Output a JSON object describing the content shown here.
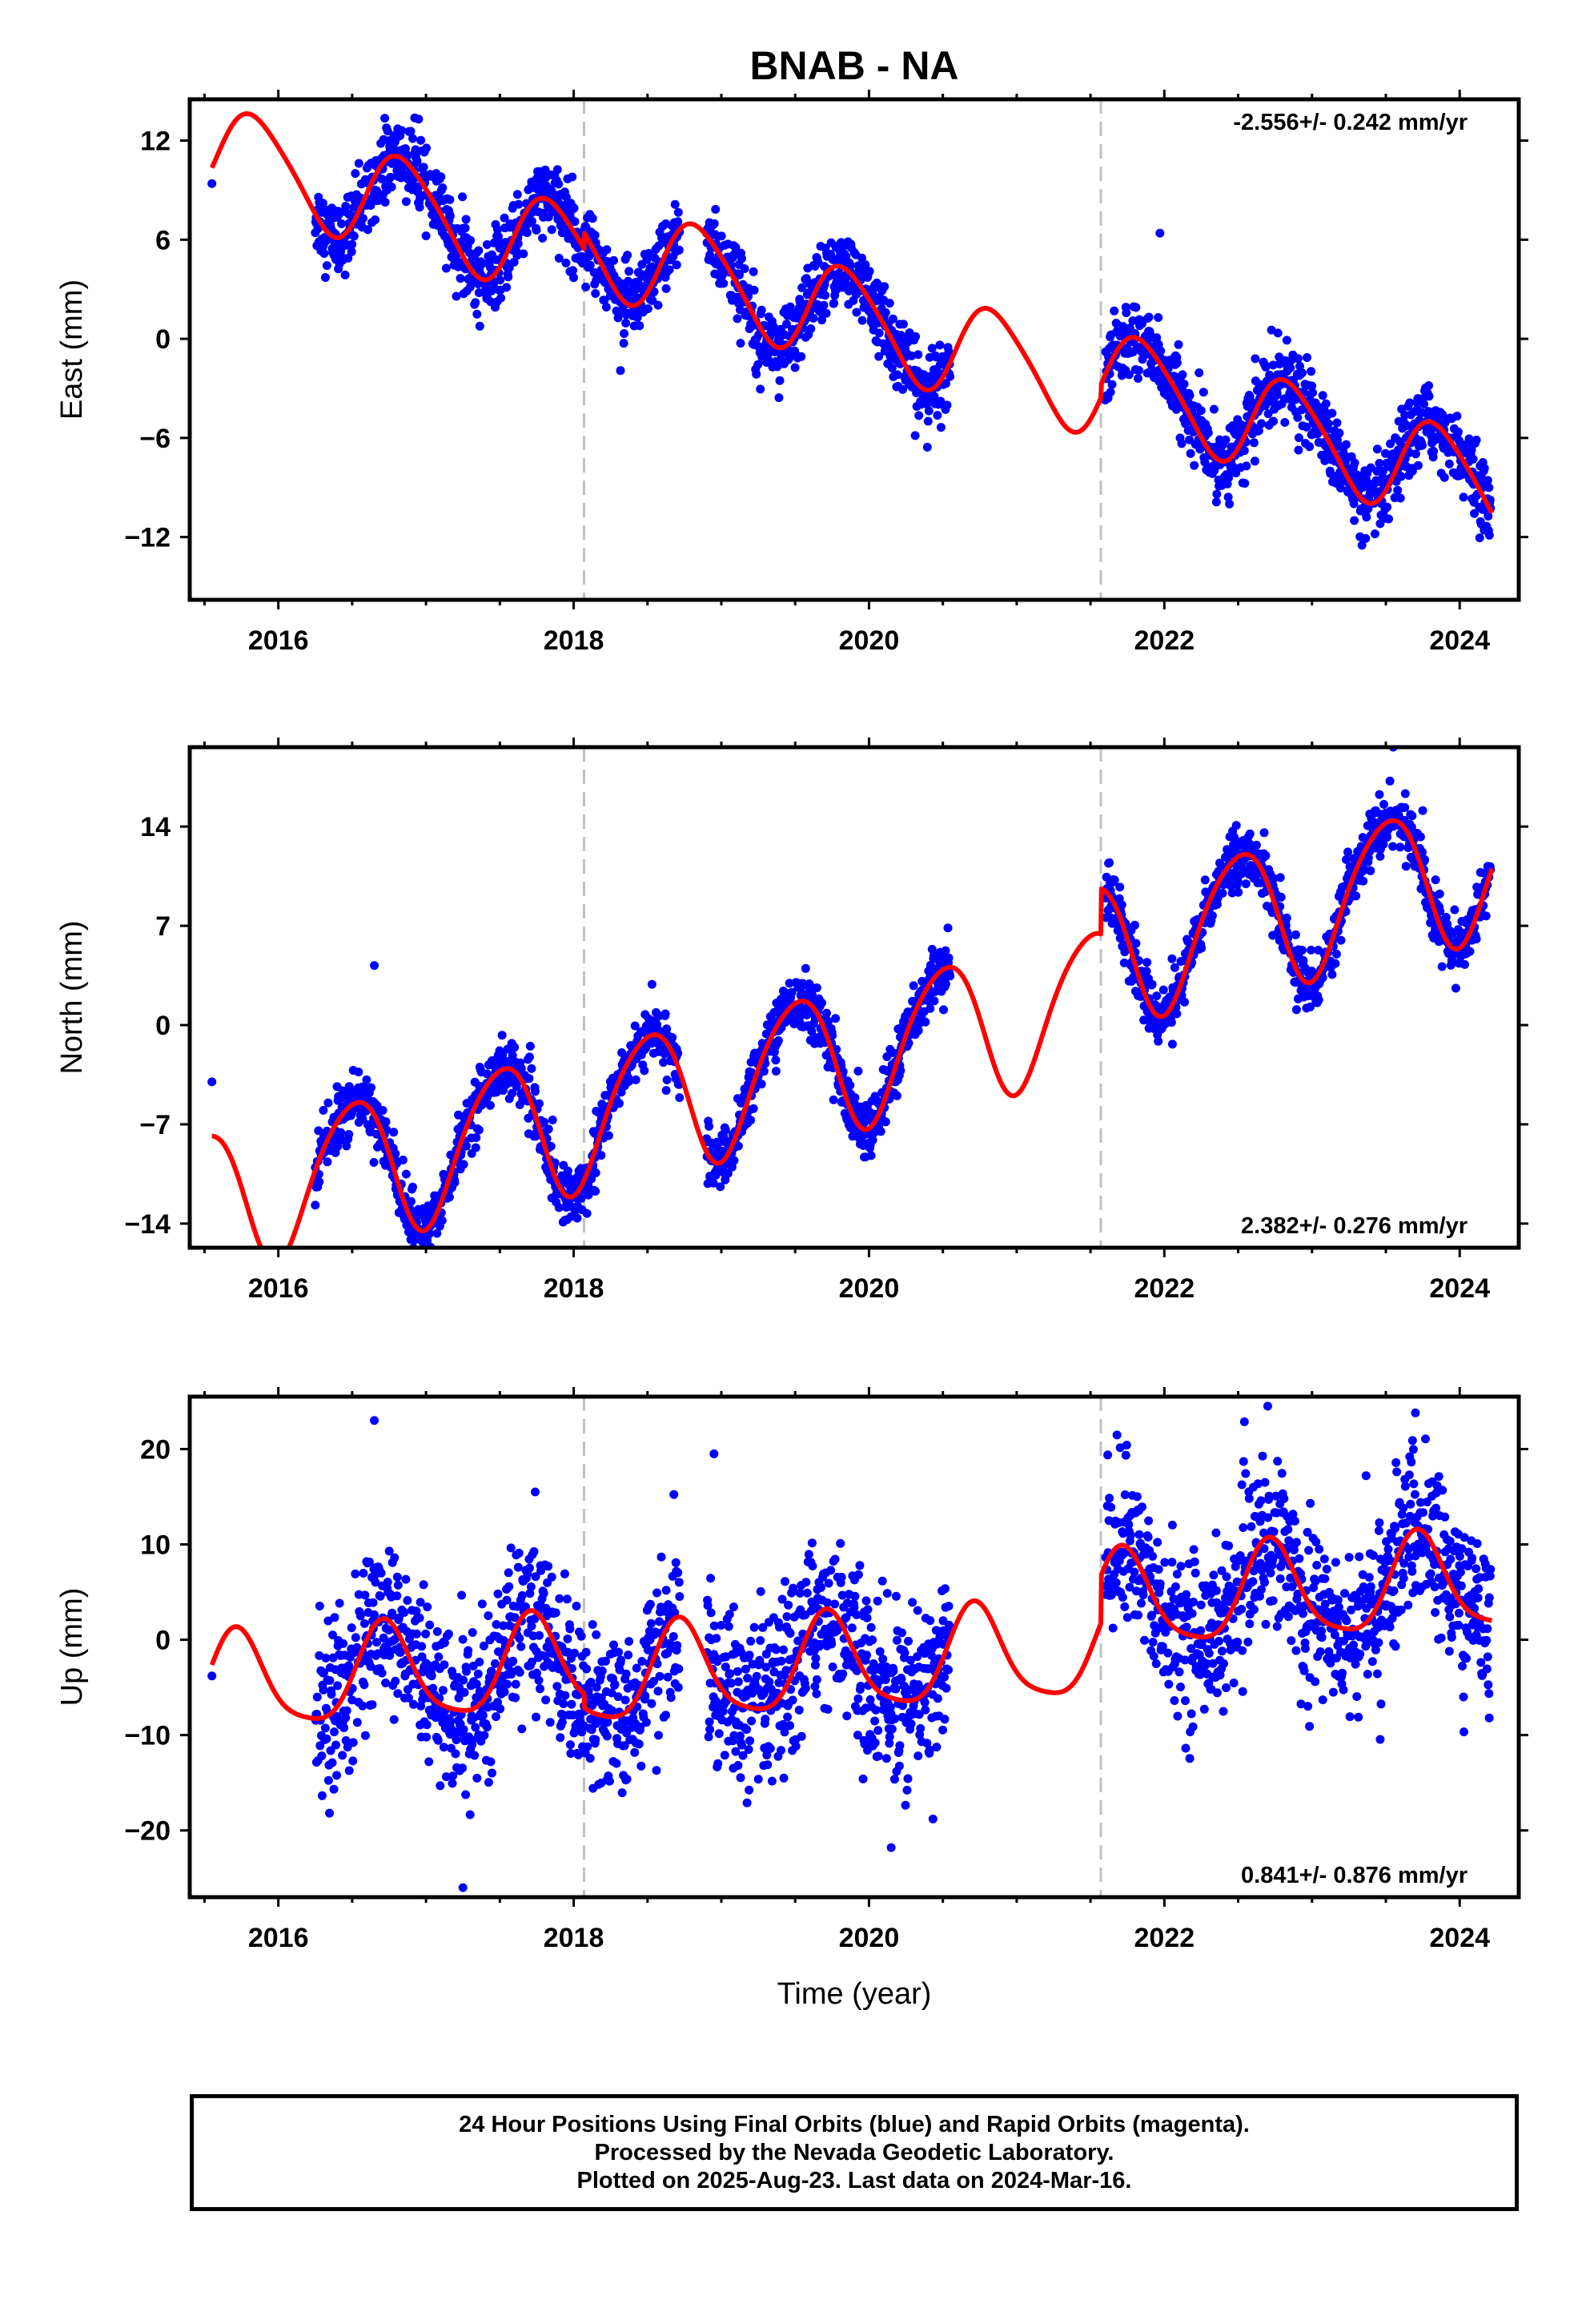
{
  "title": "BNAB - NA",
  "xlabel": "Time (year)",
  "footer": {
    "line1": "24 Hour Positions Using Final Orbits (blue) and Rapid Orbits (magenta).",
    "line2": "Processed by the Nevada Geodetic Laboratory.",
    "line3": "Plotted on 2025-Aug-23. Last data on 2024-Mar-16."
  },
  "colors": {
    "points": "#0000ff",
    "model": "#ff0000",
    "breaks": "#c0c0c0",
    "frame": "#000000"
  },
  "chart_data": [
    {
      "type": "scatter",
      "component": "East",
      "ylabel": "East (mm)",
      "rate_label": "-2.556+/- 0.242 mm/yr",
      "rate_label_position": "top-right",
      "xlim": [
        2015.4,
        2024.4
      ],
      "ylim": [
        -15.8,
        14.5
      ],
      "xticks": [
        2016,
        2018,
        2020,
        2022,
        2024
      ],
      "yticks": [
        12,
        6,
        0,
        -6,
        -12
      ],
      "ytick_labels": [
        "12",
        "6",
        "0",
        "−6",
        "−12"
      ],
      "equipment_breaks": [
        2018.07,
        2021.57
      ],
      "data_spans": [
        [
          2016.25,
          2018.72
        ],
        [
          2018.9,
          2020.55
        ],
        [
          2021.6,
          2024.21
        ]
      ],
      "outliers": [
        [
          2015.55,
          9.4
        ],
        [
          2016.95,
          13.3
        ],
        [
          2017.99,
          9.8
        ],
        [
          2021.97,
          6.4
        ]
      ],
      "model": {
        "rate_mm_per_yr": -2.556,
        "offset_at_2020": 0.0,
        "annual_amplitude_mm": 2.9,
        "annual_phase_peak_year_fraction": 0.85,
        "semiannual_amplitude_mm": 0.4,
        "steps_mm": [
          {
            "year": 2018.07,
            "value": 1.0
          },
          {
            "year": 2021.57,
            "value": 0.8
          }
        ]
      },
      "scatter_sigma_mm": 1.1
    },
    {
      "type": "scatter",
      "component": "North",
      "ylabel": "North (mm)",
      "rate_label": "2.382+/- 0.276 mm/yr",
      "rate_label_position": "bottom-right",
      "xlim": [
        2015.4,
        2024.4
      ],
      "ylim": [
        -15.7,
        19.6
      ],
      "xticks": [
        2016,
        2018,
        2020,
        2022,
        2024
      ],
      "yticks": [
        14,
        7,
        0,
        -7,
        -14
      ],
      "ytick_labels": [
        "14",
        "7",
        "0",
        "−7",
        "−14"
      ],
      "equipment_breaks": [
        2018.07,
        2021.57
      ],
      "data_spans": [
        [
          2016.25,
          2018.72
        ],
        [
          2018.9,
          2020.55
        ],
        [
          2021.6,
          2024.21
        ]
      ],
      "outliers": [
        [
          2015.55,
          -4.0
        ],
        [
          2016.65,
          4.2
        ],
        [
          2016.25,
          -12.7
        ],
        [
          2023.55,
          19.6
        ]
      ],
      "model": {
        "rate_mm_per_yr": 2.382,
        "offset_at_2020": -1.8,
        "annual_amplitude_mm": 5.0,
        "annual_phase_peak_year_fraction": 0.5,
        "semiannual_amplitude_mm": 0.6,
        "steps_mm": [
          {
            "year": 2018.07,
            "value": 0.0
          },
          {
            "year": 2021.57,
            "value": 3.2
          }
        ]
      },
      "scatter_sigma_mm": 1.0
    },
    {
      "type": "scatter",
      "component": "Up",
      "ylabel": "Up (mm)",
      "rate_label": "0.841+/- 0.876 mm/yr",
      "rate_label_position": "bottom-right",
      "xlim": [
        2015.4,
        2024.4
      ],
      "ylim": [
        -27,
        25.5
      ],
      "xticks": [
        2016,
        2018,
        2020,
        2022,
        2024
      ],
      "yticks": [
        20,
        10,
        0,
        -10,
        -20
      ],
      "ytick_labels": [
        "20",
        "10",
        "0",
        "−10",
        "−20"
      ],
      "equipment_breaks": [
        2018.07,
        2021.57
      ],
      "data_spans": [
        [
          2016.25,
          2018.72
        ],
        [
          2018.9,
          2020.55
        ],
        [
          2021.6,
          2024.21
        ]
      ],
      "outliers": [
        [
          2015.55,
          -3.8
        ],
        [
          2016.65,
          23.0
        ],
        [
          2017.25,
          -26.0
        ],
        [
          2018.95,
          19.5
        ],
        [
          2020.15,
          -21.8
        ],
        [
          2022.7,
          24.5
        ],
        [
          2023.7,
          23.8
        ],
        [
          2024.2,
          -8.2
        ]
      ],
      "model": {
        "rate_mm_per_yr": 0.841,
        "offset_at_2020": -1.0,
        "annual_amplitude_mm": 5.0,
        "annual_phase_peak_year_fraction": 0.72,
        "semiannual_amplitude_mm": 1.0,
        "steps_mm": [
          {
            "year": 2018.07,
            "value": -1.5
          },
          {
            "year": 2021.57,
            "value": 5.0
          }
        ]
      },
      "scatter_sigma_mm": 4.3
    }
  ]
}
